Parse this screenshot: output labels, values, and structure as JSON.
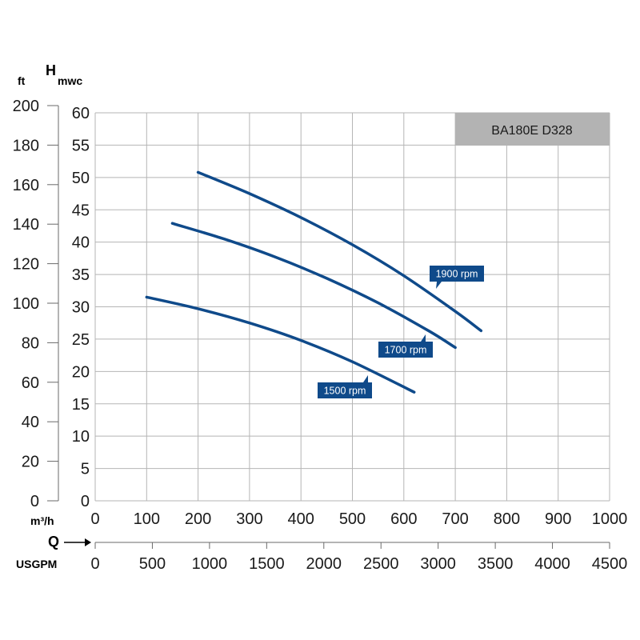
{
  "chart_data": {
    "type": "line",
    "model_label": "BA180E D328",
    "y_axis_left": {
      "unit": "ft",
      "range": [
        0,
        200
      ],
      "ticks": [
        "0",
        "20",
        "40",
        "60",
        "80",
        "100",
        "120",
        "140",
        "160",
        "180",
        "200"
      ]
    },
    "y_axis_main": {
      "title": "H",
      "unit": "mwc",
      "range": [
        0,
        60
      ],
      "ticks": [
        "0",
        "5",
        "10",
        "15",
        "20",
        "25",
        "30",
        "35",
        "40",
        "45",
        "50",
        "55",
        "60"
      ]
    },
    "x_axis_main": {
      "unit": "m³/h",
      "range": [
        0,
        1000
      ],
      "ticks": [
        "0",
        "100",
        "200",
        "300",
        "400",
        "500",
        "600",
        "700",
        "800",
        "900",
        "1000"
      ]
    },
    "x_axis_secondary": {
      "title": "Q",
      "unit": "USGPM",
      "range": [
        0,
        4500
      ],
      "ticks": [
        "0",
        "500",
        "1000",
        "1500",
        "2000",
        "2500",
        "3000",
        "3500",
        "4000",
        "4500"
      ]
    },
    "grid": true,
    "series": [
      {
        "name": "1900 rpm",
        "color": "#0f4a8a",
        "x": [
          200,
          300,
          400,
          500,
          600,
          700,
          750
        ],
        "y": [
          50.8,
          47.5,
          43.8,
          39.6,
          34.8,
          29.3,
          26.3
        ]
      },
      {
        "name": "1700 rpm",
        "color": "#0f4a8a",
        "x": [
          150,
          250,
          350,
          450,
          550,
          650,
          700
        ],
        "y": [
          42.9,
          40.5,
          37.7,
          34.4,
          30.6,
          26.2,
          23.7
        ]
      },
      {
        "name": "1500 rpm",
        "color": "#0f4a8a",
        "x": [
          100,
          200,
          300,
          400,
          500,
          620
        ],
        "y": [
          31.5,
          29.7,
          27.5,
          24.8,
          21.5,
          16.8
        ]
      }
    ]
  }
}
